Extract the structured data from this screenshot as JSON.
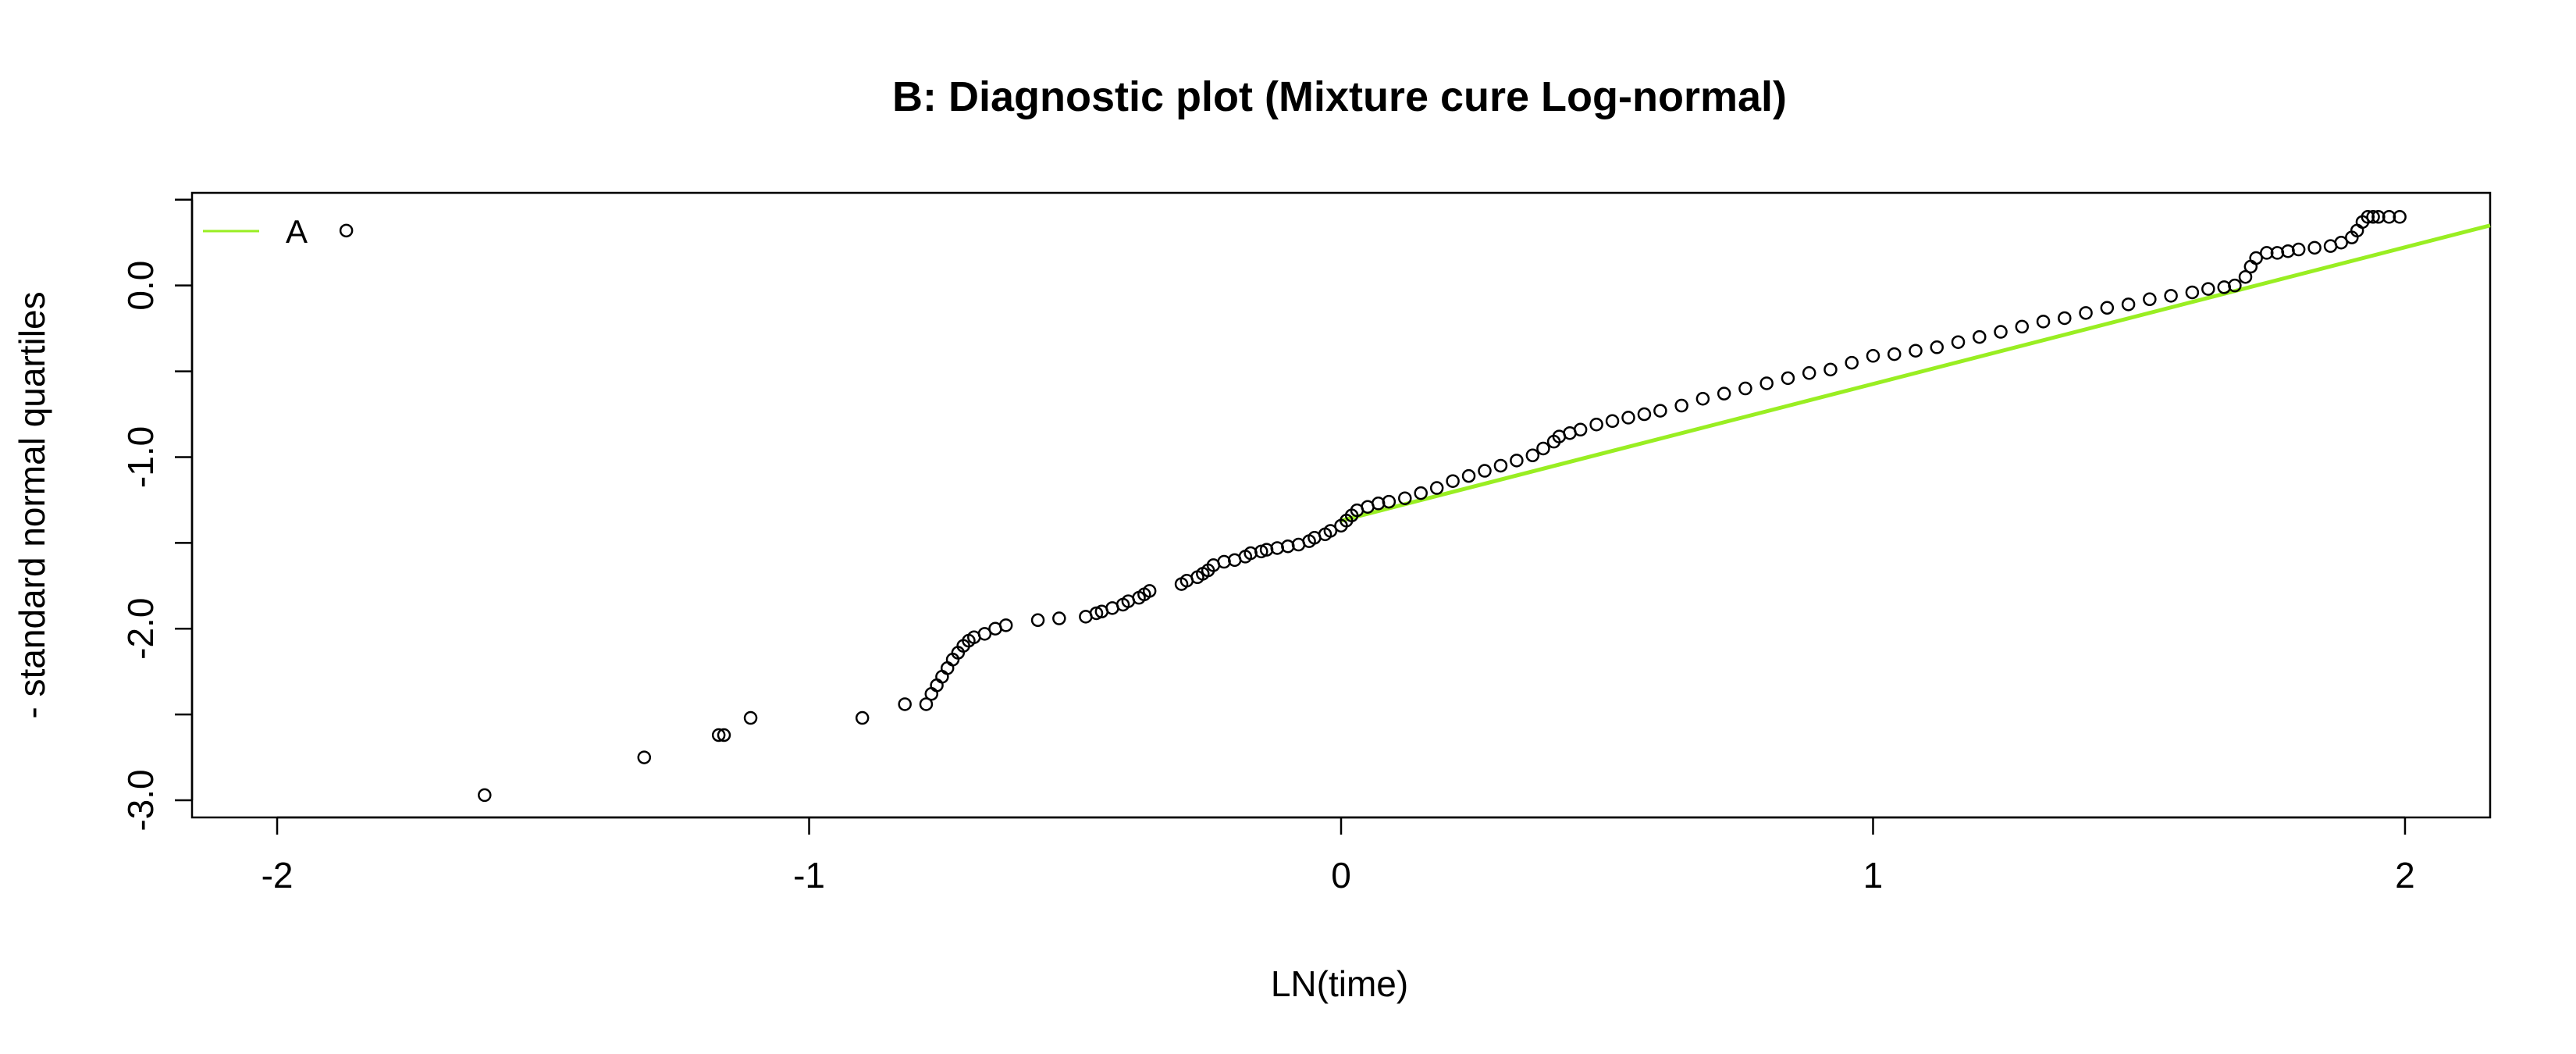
{
  "chart_data": {
    "type": "scatter",
    "title": "B: Diagnostic plot (Mixture cure Log-normal)",
    "xlabel": "LN(time)",
    "ylabel": "- standard normal quartiles",
    "xlim": [
      -2.16,
      2.16
    ],
    "ylim": [
      -3.1,
      0.54
    ],
    "x_ticks": [
      -2,
      -1,
      0,
      1,
      2
    ],
    "x_tick_labels": [
      "-2",
      "-1",
      "0",
      "1",
      "2"
    ],
    "y_ticks": [
      -3,
      -2.5,
      -2,
      -1.5,
      -1,
      -0.5,
      0,
      0.5
    ],
    "y_tick_labels": [
      "-3.0",
      "",
      "-2.0",
      "",
      "-1.0",
      "",
      "0.0",
      ""
    ],
    "grid": false,
    "legend": {
      "position": "top-left",
      "entries": [
        {
          "label": "A",
          "color": "#99ee22"
        }
      ]
    },
    "series": [
      {
        "kind": "points",
        "marker": "open-circle",
        "color": "#000000",
        "x": [
          -1.87,
          -1.61,
          -1.31,
          -1.17,
          -1.16,
          -1.11,
          -0.9,
          -0.82,
          -0.78,
          -0.77,
          -0.76,
          -0.75,
          -0.74,
          -0.73,
          -0.72,
          -0.71,
          -0.7,
          -0.69,
          -0.67,
          -0.65,
          -0.63,
          -0.57,
          -0.53,
          -0.48,
          -0.46,
          -0.45,
          -0.43,
          -0.41,
          -0.4,
          -0.38,
          -0.37,
          -0.36,
          -0.3,
          -0.29,
          -0.27,
          -0.26,
          -0.25,
          -0.24,
          -0.22,
          -0.2,
          -0.18,
          -0.17,
          -0.15,
          -0.14,
          -0.12,
          -0.1,
          -0.08,
          -0.06,
          -0.05,
          -0.03,
          -0.02,
          0.0,
          0.01,
          0.02,
          0.03,
          0.05,
          0.07,
          0.09,
          0.12,
          0.15,
          0.18,
          0.21,
          0.24,
          0.27,
          0.3,
          0.33,
          0.36,
          0.38,
          0.4,
          0.41,
          0.43,
          0.45,
          0.48,
          0.51,
          0.54,
          0.57,
          0.6,
          0.64,
          0.68,
          0.72,
          0.76,
          0.8,
          0.84,
          0.88,
          0.92,
          0.96,
          1.0,
          1.04,
          1.08,
          1.12,
          1.16,
          1.2,
          1.24,
          1.28,
          1.32,
          1.36,
          1.4,
          1.44,
          1.48,
          1.52,
          1.56,
          1.6,
          1.63,
          1.66,
          1.68,
          1.7,
          1.71,
          1.72,
          1.74,
          1.76,
          1.78,
          1.8,
          1.83,
          1.86,
          1.88,
          1.9,
          1.91,
          1.92,
          1.93,
          1.94,
          1.95,
          1.97,
          1.99
        ],
        "y": [
          0.32,
          -2.97,
          -2.75,
          -2.62,
          -2.62,
          -2.52,
          -2.52,
          -2.44,
          -2.44,
          -2.38,
          -2.33,
          -2.28,
          -2.23,
          -2.18,
          -2.14,
          -2.1,
          -2.07,
          -2.05,
          -2.03,
          -2.0,
          -1.98,
          -1.95,
          -1.94,
          -1.93,
          -1.91,
          -1.9,
          -1.88,
          -1.86,
          -1.84,
          -1.82,
          -1.8,
          -1.78,
          -1.74,
          -1.72,
          -1.7,
          -1.68,
          -1.66,
          -1.63,
          -1.61,
          -1.6,
          -1.58,
          -1.56,
          -1.55,
          -1.54,
          -1.53,
          -1.52,
          -1.51,
          -1.49,
          -1.47,
          -1.45,
          -1.43,
          -1.4,
          -1.37,
          -1.34,
          -1.31,
          -1.29,
          -1.27,
          -1.26,
          -1.24,
          -1.21,
          -1.18,
          -1.14,
          -1.11,
          -1.08,
          -1.05,
          -1.02,
          -0.99,
          -0.95,
          -0.91,
          -0.88,
          -0.86,
          -0.84,
          -0.81,
          -0.79,
          -0.77,
          -0.75,
          -0.73,
          -0.7,
          -0.66,
          -0.63,
          -0.6,
          -0.57,
          -0.54,
          -0.51,
          -0.49,
          -0.45,
          -0.41,
          -0.4,
          -0.38,
          -0.36,
          -0.33,
          -0.3,
          -0.27,
          -0.24,
          -0.21,
          -0.19,
          -0.16,
          -0.13,
          -0.11,
          -0.08,
          -0.06,
          -0.04,
          -0.02,
          -0.01,
          0.0,
          0.05,
          0.11,
          0.16,
          0.19,
          0.19,
          0.2,
          0.21,
          0.22,
          0.23,
          0.25,
          0.28,
          0.32,
          0.37,
          0.4,
          0.4,
          0.4,
          0.4,
          0.4
        ]
      },
      {
        "name": "A",
        "kind": "line",
        "color": "#99ee22",
        "x": [
          0.0,
          2.16
        ],
        "y": [
          -1.37,
          0.35
        ]
      }
    ]
  }
}
